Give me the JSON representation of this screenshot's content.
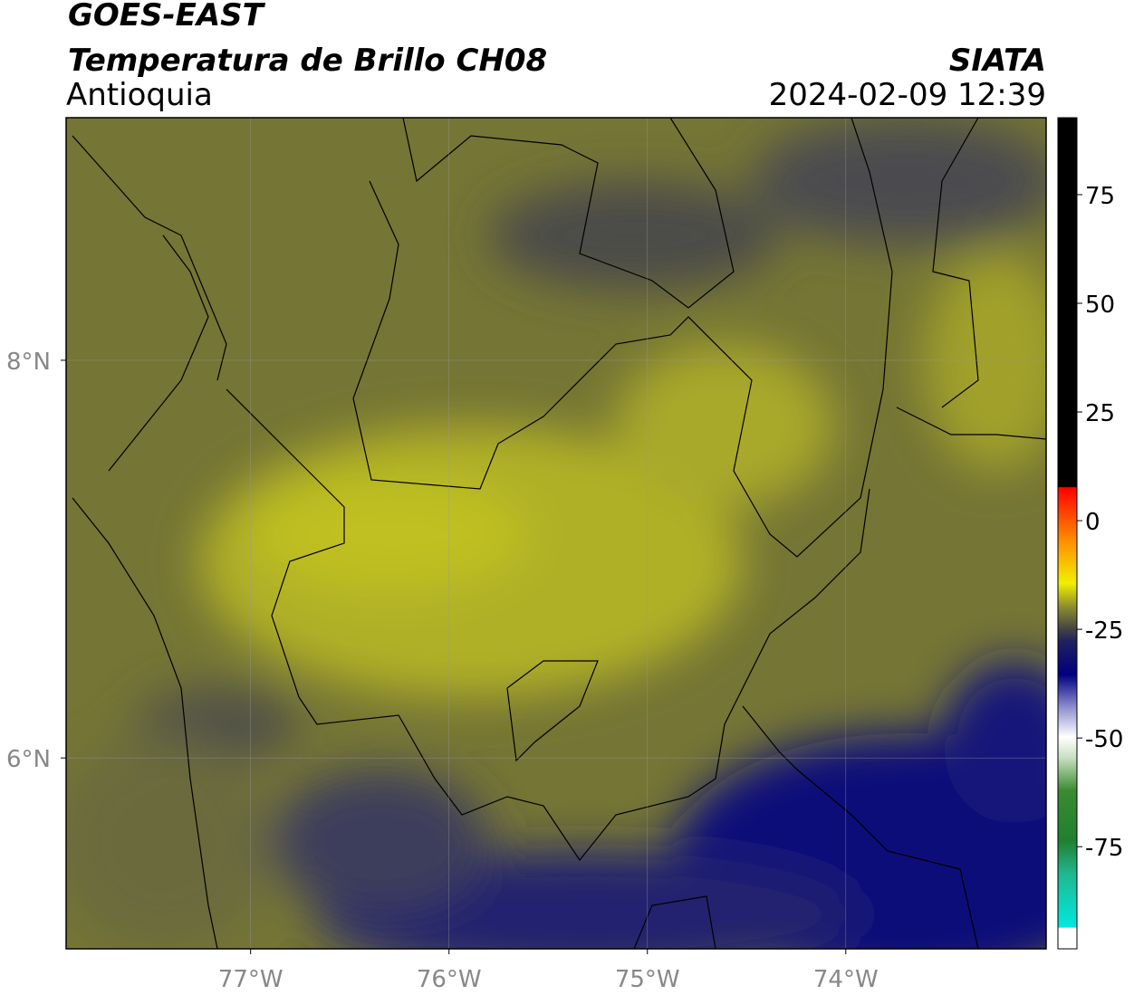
{
  "header": {
    "title": "GOES-EAST",
    "subtitle": "Temperatura de Brillo CH08",
    "region": "Antioquia",
    "source": "SIATA",
    "datetime": "2024-02-09 12:39"
  },
  "map": {
    "lonlim": [
      -77.93,
      -72.99
    ],
    "latlim": [
      5.04,
      9.22
    ],
    "lon_ticks": [
      {
        "value": -77,
        "label": "77°W"
      },
      {
        "value": -76,
        "label": "76°W"
      },
      {
        "value": -75,
        "label": "75°W"
      },
      {
        "value": -74,
        "label": "74°W"
      }
    ],
    "lat_ticks": [
      {
        "value": 8,
        "label": "8°N"
      },
      {
        "value": 6,
        "label": "6°N"
      }
    ],
    "grid": true
  },
  "colorbar": {
    "lim": [
      -98.5,
      92.7
    ],
    "ticks": [
      75,
      50,
      25,
      0,
      -25,
      -50,
      -75
    ]
  }
}
